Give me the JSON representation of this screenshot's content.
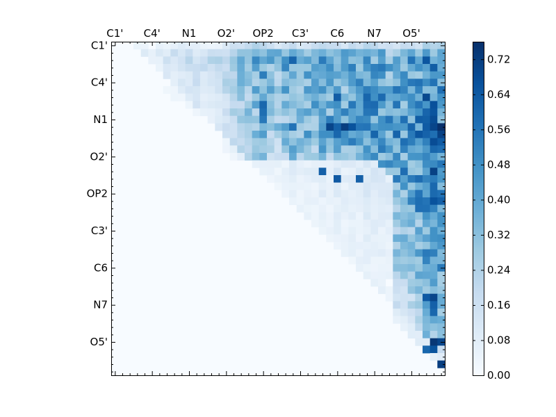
{
  "chart_data": {
    "type": "heatmap",
    "title": "",
    "xlabel": "",
    "ylabel": "",
    "grid_size": 45,
    "x_tick_labels": [
      "C1'",
      "C4'",
      "N1",
      "O2'",
      "OP2",
      "C3'",
      "C6",
      "N7",
      "O5'"
    ],
    "y_tick_labels": [
      "C1'",
      "C4'",
      "N1",
      "O2'",
      "OP2",
      "C3'",
      "C6",
      "N7",
      "O5'"
    ],
    "tick_index_start": 0,
    "tick_index_step": 5,
    "upper_triangle_only": true,
    "colorbar": {
      "colormap": "Blues",
      "range": [
        0.0,
        0.76
      ],
      "tick_labels": [
        "0.00",
        "0.08",
        "0.16",
        "0.24",
        "0.32",
        "0.40",
        "0.48",
        "0.56",
        "0.64",
        "0.72"
      ],
      "tick_values": [
        0.0,
        0.08,
        0.16,
        0.24,
        0.32,
        0.4,
        0.48,
        0.56,
        0.64,
        0.72
      ]
    },
    "column_profile": [
      0,
      0.22,
      0.22,
      0.12,
      0.12,
      0.1,
      0.1,
      0.14,
      0.16,
      0.16,
      0.14,
      0.14,
      0.1,
      0.1,
      0.1,
      0.22,
      0.26,
      0.3,
      0.36,
      0.42,
      0.6,
      0.32,
      0.28,
      0.34,
      0.46,
      0.3,
      0.32,
      0.3,
      0.4,
      0.3,
      0.48,
      0.3,
      0.36,
      0.34,
      0.46,
      0.42,
      0.4,
      0.3,
      0.36,
      0.34,
      0.36,
      0.42,
      0.56,
      0.54,
      0.48
    ],
    "row_profile": [
      0,
      0.42,
      0.55,
      0.5,
      0.48,
      0.52,
      0.55,
      0.55,
      0.58,
      0.56,
      0.6,
      0.72,
      0.66,
      0.6,
      0.58,
      0.5,
      0.55,
      0.6,
      0.55,
      0.45,
      0.62,
      0.58,
      0.55,
      0.45,
      0.4,
      0.42,
      0.48,
      0.5,
      0.52,
      0.55,
      0.58,
      0.55,
      0.5,
      0.48,
      0.5,
      0.55,
      0.6,
      0.62,
      0.7,
      0.68,
      0.74,
      0.6,
      0.52,
      0.48,
      0.7
    ],
    "hotspots": [
      {
        "row": 11,
        "col": 29,
        "value": 0.7
      },
      {
        "row": 11,
        "col": 31,
        "value": 0.72
      },
      {
        "row": 11,
        "col": 32,
        "value": 0.66
      },
      {
        "row": 11,
        "col": 44,
        "value": 0.76
      },
      {
        "row": 11,
        "col": 43,
        "value": 0.7
      },
      {
        "row": 10,
        "col": 43,
        "value": 0.68
      },
      {
        "row": 40,
        "col": 43,
        "value": 0.74
      },
      {
        "row": 40,
        "col": 44,
        "value": 0.7
      },
      {
        "row": 41,
        "col": 43,
        "value": 0.66
      },
      {
        "row": 41,
        "col": 42,
        "value": 0.6
      },
      {
        "row": 43,
        "col": 42,
        "value": 0.68
      },
      {
        "row": 43,
        "col": 43,
        "value": 0.66
      },
      {
        "row": 43,
        "col": 44,
        "value": 0.72
      },
      {
        "row": 34,
        "col": 42,
        "value": 0.64
      },
      {
        "row": 34,
        "col": 43,
        "value": 0.7
      },
      {
        "row": 35,
        "col": 43,
        "value": 0.62
      },
      {
        "row": 36,
        "col": 43,
        "value": 0.6
      },
      {
        "row": 20,
        "col": 41,
        "value": 0.56
      },
      {
        "row": 21,
        "col": 41,
        "value": 0.58
      },
      {
        "row": 21,
        "col": 42,
        "value": 0.56
      },
      {
        "row": 17,
        "col": 28,
        "value": 0.62
      },
      {
        "row": 18,
        "col": 30,
        "value": 0.64
      },
      {
        "row": 18,
        "col": 33,
        "value": 0.62
      },
      {
        "row": 8,
        "col": 20,
        "value": 0.6
      },
      {
        "row": 9,
        "col": 20,
        "value": 0.58
      },
      {
        "row": 10,
        "col": 20,
        "value": 0.55
      }
    ]
  }
}
